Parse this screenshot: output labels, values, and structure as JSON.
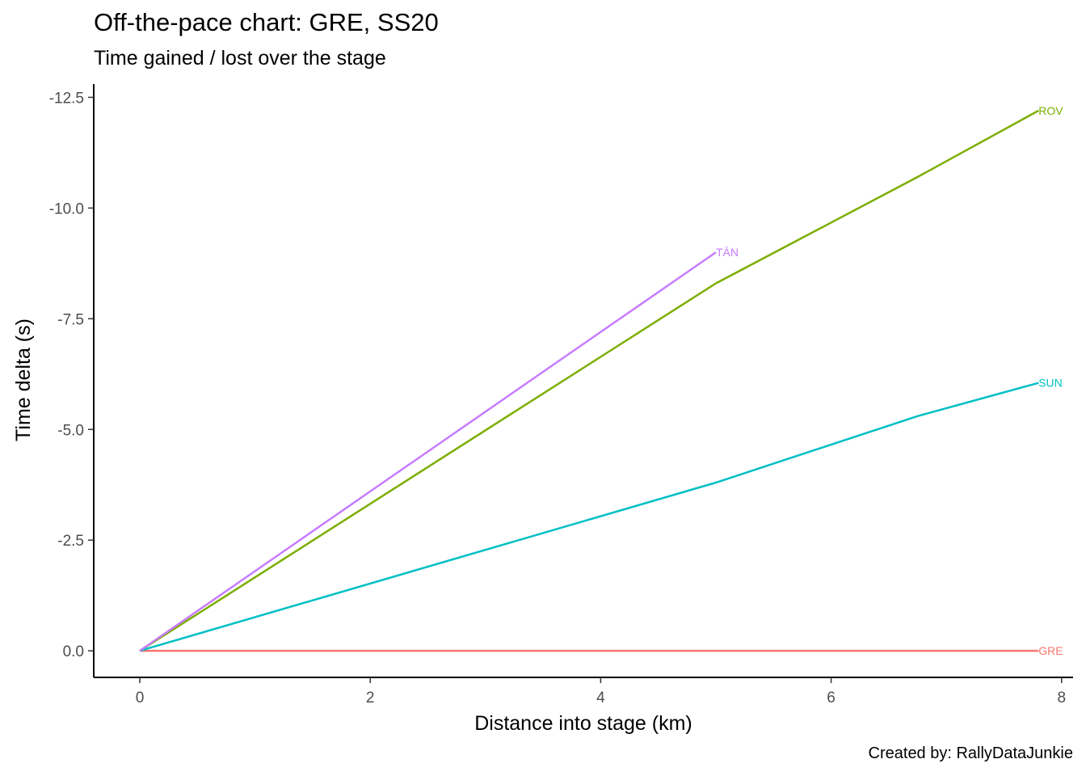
{
  "chart_data": {
    "type": "line",
    "title": "Off-the-pace chart: GRE, SS20",
    "subtitle": "Time gained / lost over the stage",
    "caption": "Created by: RallyDataJunkie",
    "xlabel": "Distance into stage (km)",
    "ylabel": "Time delta (s)",
    "xlim": [
      -0.4,
      8.1
    ],
    "ylim": [
      0.6,
      -12.8
    ],
    "y_reversed": true,
    "x_ticks": [
      0,
      2,
      4,
      6,
      8
    ],
    "x_tick_labels": [
      "0",
      "2",
      "4",
      "6",
      "8"
    ],
    "y_ticks": [
      0,
      -2.5,
      -5,
      -7.5,
      -10,
      -12.5
    ],
    "y_tick_labels": [
      "0.0",
      "-2.5",
      "-5.0",
      "-7.5",
      "-10.0",
      "-12.5"
    ],
    "grid": false,
    "legend": "none",
    "series": [
      {
        "name": "GRE",
        "color": "#F8766D",
        "x": [
          0,
          7.8
        ],
        "y": [
          0,
          0
        ]
      },
      {
        "name": "ROV",
        "color": "#7CAE00",
        "x": [
          0,
          5.0,
          6.75,
          7.8
        ],
        "y": [
          0,
          -8.3,
          -10.7,
          -12.2
        ]
      },
      {
        "name": "SUN",
        "color": "#00BFC4",
        "x": [
          0,
          5.0,
          6.75,
          7.8
        ],
        "y": [
          0,
          -3.8,
          -5.3,
          -6.05
        ]
      },
      {
        "name": "TÄN",
        "color": "#C77CFF",
        "x": [
          0,
          5.0
        ],
        "y": [
          0,
          -9.0
        ]
      }
    ]
  }
}
